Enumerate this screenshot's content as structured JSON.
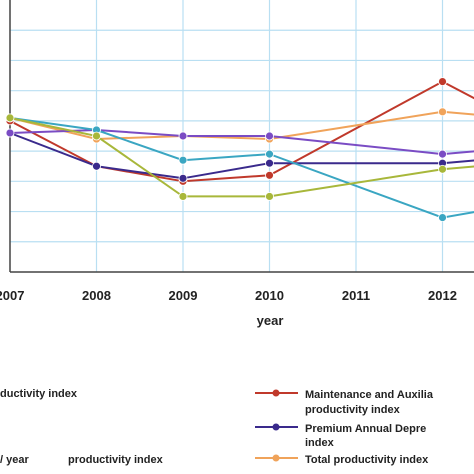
{
  "chart_data": {
    "type": "line",
    "x": [
      "2007",
      "2008",
      "2009",
      "2010",
      "2011",
      "2012"
    ],
    "xlabel": "year",
    "ylabel": "",
    "ylim": [
      0,
      9
    ],
    "grid": true,
    "y_ticks_visible": false,
    "series": [
      {
        "name": "Maintenance and Auxilia",
        "color": "#c0392b",
        "points": [
          [
            0,
            5.0
          ],
          [
            1,
            3.5
          ],
          [
            2,
            3.0
          ],
          [
            3,
            3.2
          ],
          [
            5,
            6.3
          ],
          [
            5.4,
            5.7
          ]
        ]
      },
      {
        "name": "Premium Annual Depre",
        "color": "#3a2a8c",
        "points": [
          [
            0,
            4.6
          ],
          [
            1,
            3.5
          ],
          [
            2,
            3.1
          ],
          [
            3,
            3.6
          ],
          [
            5,
            3.6
          ],
          [
            5.4,
            3.7
          ]
        ]
      },
      {
        "name": "Total productivity index",
        "color": "#f0a35a",
        "points": [
          [
            0,
            5.1
          ],
          [
            1,
            4.4
          ],
          [
            2,
            4.5
          ],
          [
            3,
            4.4
          ],
          [
            5,
            5.3
          ],
          [
            5.4,
            5.2
          ]
        ]
      },
      {
        "name": "",
        "color": "#7a4cc4",
        "points": [
          [
            0,
            4.6
          ],
          [
            1,
            4.7
          ],
          [
            2,
            4.5
          ],
          [
            3,
            4.5
          ],
          [
            5,
            3.9
          ],
          [
            5.4,
            4.0
          ]
        ]
      },
      {
        "name": "",
        "color": "#3aa6c2",
        "points": [
          [
            0,
            5.1
          ],
          [
            1,
            4.7
          ],
          [
            2,
            3.7
          ],
          [
            3,
            3.9
          ],
          [
            5,
            1.8
          ],
          [
            5.4,
            2.0
          ]
        ]
      },
      {
        "name": "",
        "color": "#a8b73a",
        "points": [
          [
            0,
            5.1
          ],
          [
            1,
            4.5
          ],
          [
            2,
            2.5
          ],
          [
            3,
            2.5
          ],
          [
            5,
            3.4
          ],
          [
            5.4,
            3.5
          ]
        ]
      }
    ],
    "legend_entries": [
      "ductivity index",
      "Maintenance and Auxilia",
      "productivity index",
      "Premium Annual Depre",
      "index",
      "/ year",
      "productivity index",
      "Total productivity index"
    ]
  }
}
